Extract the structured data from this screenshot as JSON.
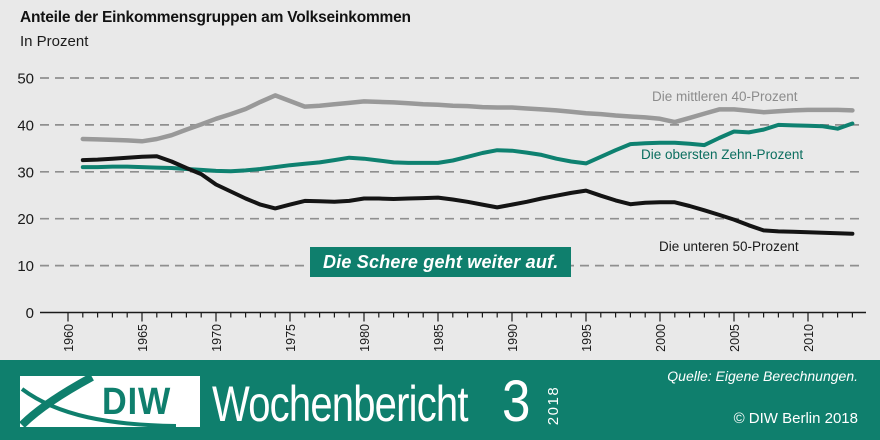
{
  "colors": {
    "background": "#e9e9e9",
    "teal": "#0f7f6d",
    "line_gray": "#999999",
    "line_teal": "#0e8170",
    "line_black": "#141414",
    "grid": "#8f8f8f"
  },
  "header": {
    "title": "Anteile der Einkommensgruppen am Volkseinkommen",
    "subtitle": "In Prozent"
  },
  "chart_data": {
    "type": "line",
    "title": "Anteile der Einkommensgruppen am Volkseinkommen",
    "subtitle": "In Prozent",
    "grid": "horizontal dashed",
    "legend_position": "inline labels next to lines",
    "annotation": "Die Schere geht weiter auf.",
    "ylim": [
      0,
      50
    ],
    "yticks": [
      0,
      10,
      20,
      30,
      40,
      50
    ],
    "xticks": [
      1960,
      1965,
      1970,
      1975,
      1980,
      1985,
      1990,
      1995,
      2000,
      2005,
      2010
    ],
    "x_minor_tick_step": 1,
    "x_range": [
      1960,
      2013
    ],
    "x": [
      1961,
      1962,
      1963,
      1964,
      1965,
      1966,
      1967,
      1968,
      1969,
      1970,
      1971,
      1972,
      1973,
      1974,
      1975,
      1976,
      1977,
      1978,
      1979,
      1980,
      1981,
      1982,
      1983,
      1984,
      1985,
      1986,
      1987,
      1988,
      1989,
      1990,
      1991,
      1992,
      1993,
      1994,
      1995,
      1996,
      1997,
      1998,
      1999,
      2000,
      2001,
      2002,
      2003,
      2004,
      2005,
      2006,
      2007,
      2008,
      2009,
      2010,
      2011,
      2012,
      2013
    ],
    "series": [
      {
        "name": "Die mittleren 40-Prozent",
        "color": "#999999",
        "values": [
          37.0,
          36.9,
          36.8,
          36.7,
          36.5,
          37.0,
          37.8,
          39.0,
          40.1,
          41.3,
          42.3,
          43.4,
          44.9,
          46.3,
          45.1,
          43.9,
          44.1,
          44.4,
          44.7,
          45.0,
          44.9,
          44.8,
          44.6,
          44.4,
          44.3,
          44.1,
          44.0,
          43.8,
          43.7,
          43.7,
          43.5,
          43.3,
          43.1,
          42.8,
          42.5,
          42.3,
          42.0,
          41.8,
          41.6,
          41.3,
          40.6,
          41.5,
          42.4,
          43.3,
          43.3,
          43.0,
          42.7,
          42.9,
          43.1,
          43.2,
          43.2,
          43.2,
          43.1
        ]
      },
      {
        "name": "Die obersten Zehn-Prozent",
        "color": "#0e8170",
        "values": [
          31.0,
          31.0,
          31.1,
          31.1,
          31.0,
          30.9,
          30.8,
          30.6,
          30.4,
          30.2,
          30.1,
          30.3,
          30.6,
          31.0,
          31.4,
          31.7,
          32.0,
          32.5,
          33.0,
          32.8,
          32.4,
          32.0,
          31.9,
          31.9,
          31.9,
          32.4,
          33.2,
          34.0,
          34.6,
          34.5,
          34.1,
          33.6,
          32.8,
          32.2,
          31.8,
          33.2,
          34.6,
          35.9,
          36.1,
          36.2,
          36.2,
          36.0,
          35.7,
          37.2,
          38.6,
          38.4,
          39.0,
          40.0,
          39.9,
          39.8,
          39.7,
          39.2,
          40.3
        ]
      },
      {
        "name": "Die unteren 50-Prozent",
        "color": "#141414",
        "values": [
          32.5,
          32.6,
          32.8,
          33.0,
          33.2,
          33.3,
          32.2,
          30.8,
          29.5,
          27.3,
          25.8,
          24.3,
          23.0,
          22.2,
          23.0,
          23.8,
          23.7,
          23.6,
          23.8,
          24.3,
          24.3,
          24.2,
          24.3,
          24.4,
          24.5,
          24.1,
          23.6,
          23.0,
          22.4,
          23.0,
          23.6,
          24.3,
          24.9,
          25.5,
          26.0,
          24.9,
          23.9,
          23.1,
          23.4,
          23.5,
          23.5,
          22.7,
          21.8,
          20.8,
          19.8,
          18.6,
          17.5,
          17.3,
          17.2,
          17.1,
          17.0,
          16.9,
          16.8
        ]
      }
    ]
  },
  "footer": {
    "logo_text": "DIW",
    "publication": "Wochenbericht",
    "issue_number": "3",
    "issue_year": "2018",
    "source": "Quelle: Eigene Berechnungen.",
    "copyright": "© DIW Berlin 2018"
  }
}
